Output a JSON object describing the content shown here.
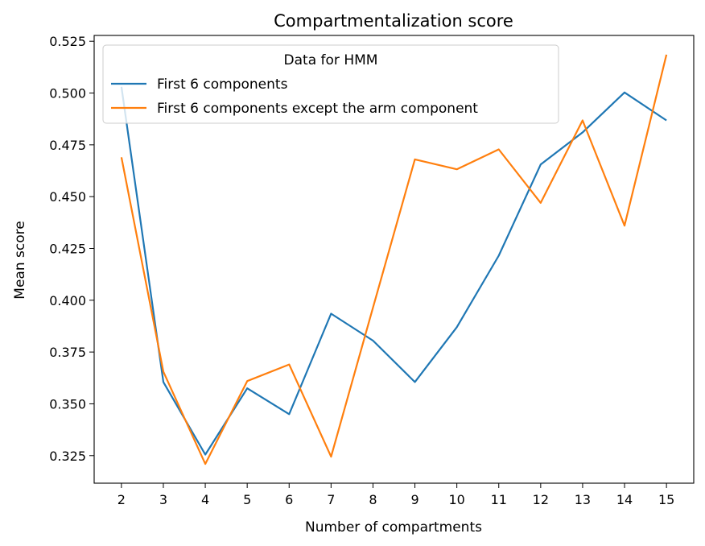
{
  "chart_data": {
    "type": "line",
    "title": "Compartmentalization score",
    "xlabel": "Number of compartments",
    "ylabel": "Mean score",
    "x": [
      2,
      3,
      4,
      5,
      6,
      7,
      8,
      9,
      10,
      11,
      12,
      13,
      14,
      15
    ],
    "xlim": [
      1.35,
      15.65
    ],
    "ylim": [
      0.3117,
      0.5278
    ],
    "yticks": [
      "0.325",
      "0.350",
      "0.375",
      "0.400",
      "0.425",
      "0.450",
      "0.475",
      "0.500",
      "0.525"
    ],
    "xticks": [
      "2",
      "3",
      "4",
      "5",
      "6",
      "7",
      "8",
      "9",
      "10",
      "11",
      "12",
      "13",
      "14",
      "15"
    ],
    "grid": false,
    "legend": {
      "title": "Data for HMM",
      "position": "top-left"
    },
    "series": [
      {
        "name": "First 6 components",
        "color": "#1f77b4",
        "values": [
          0.503,
          0.3605,
          0.3255,
          0.3575,
          0.345,
          0.3935,
          0.3805,
          0.3605,
          0.387,
          0.4215,
          0.4655,
          0.481,
          0.5003,
          0.4868
        ]
      },
      {
        "name": "First 6 components except the arm component",
        "color": "#ff7f0e",
        "values": [
          0.469,
          0.3655,
          0.321,
          0.361,
          0.369,
          0.3245,
          0.3965,
          0.468,
          0.4632,
          0.4728,
          0.447,
          0.4868,
          0.436,
          0.5185
        ]
      }
    ]
  }
}
